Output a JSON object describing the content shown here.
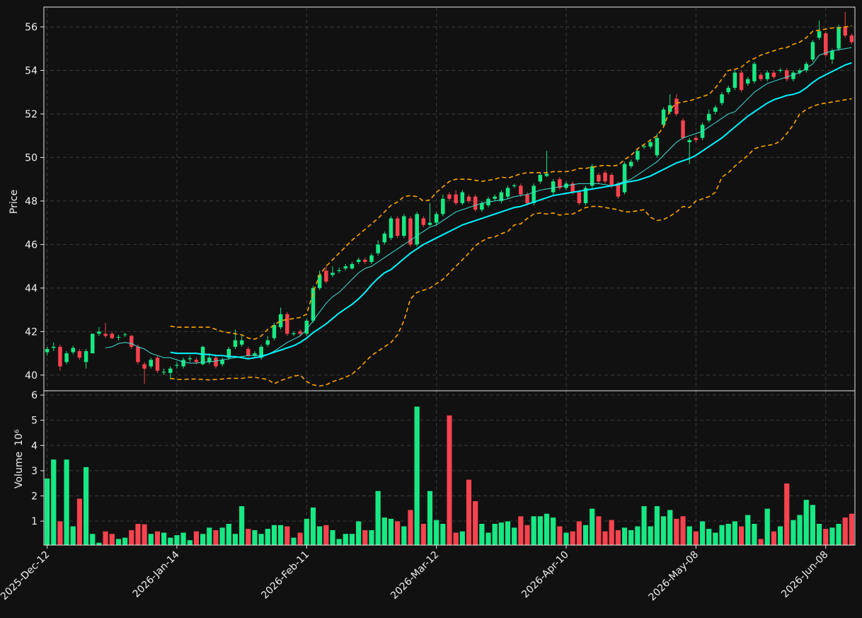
{
  "chart_data": {
    "type": "candlestick",
    "ylabel": "Price",
    "up_color": "#17e884",
    "down_color": "#f5434f",
    "grid": true,
    "ylim": [
      39.28,
      56.91
    ],
    "yticks": [
      40,
      42,
      44,
      46,
      48,
      50,
      52,
      54,
      56
    ],
    "categories": [
      "2025-Dec-12",
      null,
      null,
      null,
      null,
      null,
      null,
      null,
      null,
      null,
      null,
      null,
      null,
      null,
      null,
      null,
      null,
      null,
      null,
      null,
      "2026-Jan-14",
      null,
      null,
      null,
      null,
      null,
      null,
      null,
      null,
      null,
      null,
      null,
      null,
      null,
      null,
      null,
      null,
      null,
      null,
      null,
      "2026-Feb-11",
      null,
      null,
      null,
      null,
      null,
      null,
      null,
      null,
      null,
      null,
      null,
      null,
      null,
      null,
      null,
      null,
      null,
      null,
      null,
      "2026-Mar-12",
      null,
      null,
      null,
      null,
      null,
      null,
      null,
      null,
      null,
      null,
      null,
      null,
      null,
      null,
      null,
      null,
      null,
      null,
      null,
      "2026-Apr-10",
      null,
      null,
      null,
      null,
      null,
      null,
      null,
      null,
      null,
      null,
      null,
      null,
      null,
      null,
      null,
      null,
      null,
      null,
      null,
      "2026-May-08",
      null,
      null,
      null,
      null,
      null,
      null,
      null,
      null,
      null,
      null,
      null,
      null,
      null,
      null,
      null,
      null,
      null,
      null,
      null,
      "2026-Jun-08",
      null,
      null,
      null,
      null
    ],
    "open": [
      41.05,
      41.25,
      41.3,
      40.6,
      41.05,
      41.1,
      40.6,
      41.0,
      41.9,
      41.9,
      41.9,
      41.72,
      41.85,
      41.8,
      41.3,
      40.5,
      40.4,
      40.8,
      40.12,
      40.1,
      40.43,
      40.4,
      40.73,
      40.7,
      40.5,
      40.6,
      40.8,
      40.5,
      40.8,
      41.3,
      41.4,
      41.2,
      40.9,
      40.8,
      41.4,
      41.7,
      42.2,
      42.8,
      41.88,
      42.0,
      41.9,
      42.5,
      44.0,
      44.8,
      44.6,
      44.78,
      44.9,
      44.9,
      45.2,
      45.3,
      45.2,
      45.6,
      46.1,
      46.3,
      47.2,
      46.4,
      47.2,
      46.0,
      47.2,
      46.9,
      47.0,
      47.4,
      48.3,
      48.3,
      47.9,
      48.2,
      48.2,
      47.6,
      47.8,
      48.1,
      48.0,
      48.2,
      48.68,
      48.7,
      48.3,
      47.9,
      48.9,
      49.15,
      48.4,
      49.0,
      48.6,
      48.8,
      48.4,
      47.9,
      48.7,
      49.2,
      49.3,
      49.2,
      48.8,
      48.4,
      49.6,
      49.9,
      50.48,
      50.5,
      50.1,
      51.5,
      52.1,
      52.7,
      51.7,
      50.7,
      50.9,
      50.9,
      51.7,
      52.1,
      52.5,
      53.0,
      53.2,
      53.9,
      53.4,
      53.5,
      53.8,
      53.6,
      53.9,
      53.98,
      54.0,
      53.6,
      53.9,
      54.0,
      54.5,
      55.5,
      55.7,
      54.5,
      55.0,
      56.0,
      55.6
    ],
    "high": [
      41.3,
      41.5,
      41.4,
      41.1,
      41.35,
      41.2,
      41.2,
      41.9,
      42.2,
      42.4,
      42.0,
      41.85,
      41.95,
      41.85,
      41.4,
      40.6,
      40.8,
      40.9,
      40.3,
      40.4,
      40.6,
      40.8,
      40.9,
      40.8,
      41.35,
      41.0,
      40.9,
      40.8,
      41.3,
      42.1,
      41.8,
      41.3,
      41.1,
      41.4,
      41.8,
      42.4,
      43.1,
      42.9,
      42.0,
      42.1,
      42.6,
      44.1,
      44.8,
      45.0,
      45.0,
      44.95,
      45.1,
      45.2,
      45.4,
      45.4,
      45.6,
      46.2,
      46.6,
      47.3,
      47.3,
      47.4,
      47.3,
      47.5,
      47.3,
      47.9,
      47.5,
      48.3,
      48.4,
      48.5,
      48.5,
      48.3,
      48.3,
      48.0,
      48.2,
      48.3,
      48.5,
      48.7,
      48.8,
      48.8,
      48.4,
      48.8,
      49.3,
      50.3,
      49.0,
      49.1,
      48.9,
      48.9,
      48.5,
      48.7,
      49.7,
      49.3,
      49.4,
      49.3,
      48.9,
      49.8,
      49.9,
      50.4,
      50.6,
      50.8,
      51.1,
      52.3,
      52.9,
      52.9,
      51.8,
      50.9,
      51.0,
      51.6,
      52.2,
      52.4,
      53.0,
      53.3,
      54.0,
      54.0,
      53.7,
      54.4,
      53.9,
      54.0,
      54.0,
      54.1,
      54.1,
      54.0,
      54.1,
      54.4,
      55.4,
      56.3,
      55.8,
      55.0,
      56.1,
      56.7,
      55.7
    ],
    "low": [
      40.9,
      41.1,
      40.2,
      40.5,
      40.95,
      40.7,
      40.3,
      41.0,
      41.8,
      41.7,
      41.65,
      41.6,
      41.75,
      41.2,
      40.5,
      39.6,
      40.3,
      40.1,
      40.0,
      39.8,
      40.3,
      40.3,
      40.6,
      40.5,
      40.45,
      40.5,
      40.3,
      40.4,
      40.7,
      41.2,
      41.3,
      40.8,
      40.8,
      40.7,
      41.3,
      41.6,
      42.1,
      41.8,
      41.8,
      41.8,
      41.8,
      42.4,
      43.9,
      44.2,
      44.5,
      44.7,
      44.8,
      44.85,
      45.1,
      45.1,
      45.1,
      45.5,
      46.0,
      46.2,
      46.3,
      46.3,
      45.9,
      45.9,
      46.8,
      46.85,
      46.9,
      47.3,
      48.0,
      47.8,
      47.8,
      47.9,
      47.5,
      47.5,
      47.7,
      48.0,
      47.9,
      48.1,
      48.6,
      48.2,
      47.8,
      47.8,
      48.8,
      49.1,
      48.3,
      48.5,
      48.5,
      48.3,
      47.8,
      47.8,
      48.6,
      48.8,
      48.8,
      48.6,
      48.1,
      48.3,
      49.5,
      49.8,
      50.4,
      50.4,
      50.0,
      51.4,
      52.0,
      51.9,
      50.8,
      49.7,
      50.7,
      50.8,
      51.6,
      52.0,
      52.4,
      52.9,
      53.1,
      53.0,
      53.3,
      53.4,
      53.5,
      53.5,
      53.6,
      53.9,
      53.5,
      53.5,
      53.8,
      53.9,
      54.4,
      55.4,
      54.6,
      54.3,
      54.9,
      55.5,
      55.2
    ],
    "close": [
      41.2,
      41.3,
      40.4,
      41.0,
      41.25,
      40.8,
      41.1,
      41.9,
      42.0,
      41.8,
      41.7,
      41.75,
      41.87,
      41.3,
      40.6,
      40.3,
      40.7,
      40.2,
      40.15,
      40.3,
      40.47,
      40.7,
      40.77,
      40.6,
      41.3,
      40.8,
      40.4,
      40.7,
      41.2,
      41.6,
      41.6,
      40.9,
      41.0,
      41.3,
      41.6,
      42.3,
      42.8,
      41.9,
      41.92,
      41.9,
      42.5,
      44.0,
      44.6,
      44.3,
      44.7,
      44.82,
      45.0,
      45.1,
      45.3,
      45.2,
      45.5,
      46.0,
      46.5,
      47.2,
      46.4,
      47.3,
      46.0,
      47.4,
      46.9,
      47.0,
      47.4,
      48.1,
      48.1,
      47.9,
      48.4,
      48.0,
      47.6,
      47.9,
      48.1,
      48.2,
      48.4,
      48.6,
      48.72,
      48.3,
      47.9,
      48.7,
      49.2,
      49.25,
      48.9,
      48.6,
      48.8,
      48.4,
      47.9,
      48.6,
      49.6,
      48.9,
      48.9,
      48.7,
      48.2,
      49.7,
      49.8,
      50.3,
      50.52,
      50.7,
      50.9,
      52.2,
      52.4,
      52.0,
      50.9,
      50.8,
      50.8,
      51.5,
      52.0,
      52.3,
      52.9,
      53.2,
      53.9,
      53.1,
      53.6,
      54.3,
      53.6,
      53.9,
      53.7,
      54.02,
      53.6,
      53.9,
      54.0,
      54.3,
      55.3,
      55.8,
      54.7,
      54.9,
      56.0,
      55.6,
      55.3
    ],
    "lines": [
      {
        "color": "#ffa500",
        "width": 1.6,
        "dash": true,
        "values": [
          null,
          null,
          null,
          null,
          null,
          null,
          null,
          null,
          null,
          null,
          null,
          null,
          null,
          null,
          null,
          null,
          null,
          null,
          null,
          42.25,
          42.2,
          42.2,
          42.2,
          42.2,
          42.2,
          42.2,
          42.1,
          42.0,
          41.95,
          41.9,
          41.85,
          41.7,
          41.65,
          41.8,
          42.1,
          42.3,
          42.5,
          42.55,
          42.6,
          42.65,
          42.8,
          43.8,
          44.6,
          45.0,
          45.3,
          45.6,
          45.9,
          46.2,
          46.45,
          46.7,
          46.95,
          47.2,
          47.5,
          47.8,
          47.95,
          48.2,
          48.25,
          48.2,
          48.0,
          48.05,
          48.4,
          48.65,
          48.9,
          49.0,
          49.0,
          49.0,
          48.95,
          48.9,
          48.95,
          49.0,
          49.1,
          49.05,
          49.15,
          49.25,
          49.3,
          49.3,
          49.3,
          49.3,
          49.35,
          49.35,
          49.35,
          49.4,
          49.5,
          49.5,
          49.55,
          49.6,
          49.65,
          49.6,
          49.65,
          49.9,
          50.1,
          50.4,
          50.6,
          50.8,
          51.0,
          51.4,
          52.2,
          52.5,
          52.55,
          52.6,
          52.7,
          52.8,
          52.9,
          53.2,
          53.6,
          54.0,
          54.05,
          54.15,
          54.4,
          54.55,
          54.7,
          54.8,
          54.9,
          55.0,
          55.05,
          55.2,
          55.3,
          55.5,
          55.8,
          55.85,
          55.9,
          55.95,
          55.95,
          56.0,
          56.05
        ]
      },
      {
        "color": "#ffa500",
        "width": 1.6,
        "dash": true,
        "values": [
          null,
          null,
          null,
          null,
          null,
          null,
          null,
          null,
          null,
          null,
          null,
          null,
          null,
          null,
          null,
          null,
          null,
          null,
          null,
          39.85,
          39.8,
          39.8,
          39.82,
          39.82,
          39.8,
          39.78,
          39.8,
          39.82,
          39.85,
          39.85,
          39.85,
          39.9,
          39.9,
          39.85,
          39.8,
          39.6,
          39.75,
          39.85,
          39.95,
          40.0,
          39.7,
          39.55,
          39.5,
          39.55,
          39.7,
          39.8,
          39.9,
          40.05,
          40.3,
          40.6,
          40.9,
          41.1,
          41.3,
          41.5,
          41.85,
          42.5,
          43.5,
          43.8,
          43.9,
          44.0,
          44.2,
          44.4,
          44.7,
          45.0,
          45.3,
          45.6,
          45.95,
          46.15,
          46.3,
          46.35,
          46.5,
          46.6,
          46.9,
          46.95,
          47.2,
          47.4,
          47.45,
          47.4,
          47.45,
          47.35,
          47.4,
          47.4,
          47.55,
          47.7,
          47.75,
          47.75,
          47.7,
          47.65,
          47.6,
          47.5,
          47.5,
          47.55,
          47.6,
          47.25,
          47.1,
          47.15,
          47.3,
          47.5,
          47.75,
          47.7,
          48.0,
          48.1,
          48.2,
          48.4,
          49.1,
          49.3,
          49.6,
          49.85,
          50.1,
          50.4,
          50.5,
          50.55,
          50.6,
          50.75,
          51.1,
          51.5,
          52.0,
          52.2,
          52.35,
          52.45,
          52.5,
          52.55,
          52.6,
          52.65,
          52.7
        ]
      },
      {
        "color": "#40e0d0",
        "width": 1,
        "dash": false,
        "values": [
          null,
          null,
          null,
          null,
          null,
          null,
          null,
          null,
          null,
          41.25,
          41.3,
          41.45,
          41.5,
          41.45,
          41.3,
          41.2,
          41.0,
          40.9,
          40.8,
          40.8,
          40.7,
          40.6,
          40.55,
          40.55,
          40.6,
          40.6,
          40.65,
          40.7,
          40.75,
          40.8,
          40.85,
          40.9,
          40.9,
          40.9,
          40.95,
          41.1,
          41.3,
          41.5,
          41.65,
          41.8,
          42.1,
          42.5,
          42.9,
          43.3,
          43.6,
          43.8,
          44.1,
          44.4,
          44.7,
          44.9,
          45.0,
          45.2,
          45.4,
          45.6,
          45.8,
          46.0,
          46.2,
          46.4,
          46.6,
          46.8,
          46.9,
          47.1,
          47.3,
          47.5,
          47.6,
          47.7,
          47.8,
          47.9,
          47.95,
          48.0,
          48.05,
          48.1,
          48.2,
          48.25,
          48.3,
          48.4,
          48.5,
          48.55,
          48.6,
          48.65,
          48.7,
          48.75,
          48.8,
          48.8,
          48.8,
          48.8,
          48.75,
          48.7,
          48.8,
          48.9,
          49.0,
          49.2,
          49.4,
          49.6,
          49.8,
          50.1,
          50.4,
          50.7,
          50.9,
          51.0,
          51.1,
          51.2,
          51.4,
          51.6,
          51.8,
          52.0,
          52.1,
          52.4,
          52.7,
          53.0,
          53.2,
          53.4,
          53.5,
          53.6,
          53.7,
          53.8,
          53.9,
          54.1,
          54.3,
          54.7,
          54.8,
          54.9,
          54.95,
          55.0,
          55.05
        ]
      },
      {
        "color": "#00f5ff",
        "width": 2,
        "dash": false,
        "values": [
          null,
          null,
          null,
          null,
          null,
          null,
          null,
          null,
          null,
          null,
          null,
          null,
          null,
          null,
          null,
          null,
          null,
          null,
          null,
          41.05,
          41.0,
          41.0,
          41.0,
          41.0,
          40.95,
          40.95,
          40.9,
          40.9,
          40.85,
          40.85,
          40.8,
          40.75,
          40.8,
          40.85,
          40.95,
          41.05,
          41.15,
          41.25,
          41.35,
          41.5,
          41.7,
          41.95,
          42.15,
          42.35,
          42.6,
          42.85,
          43.05,
          43.25,
          43.5,
          43.8,
          44.15,
          44.45,
          44.7,
          44.85,
          45.1,
          45.35,
          45.6,
          45.8,
          46.0,
          46.15,
          46.3,
          46.45,
          46.6,
          46.75,
          46.9,
          47.0,
          47.1,
          47.2,
          47.3,
          47.4,
          47.5,
          47.6,
          47.7,
          47.75,
          47.85,
          47.95,
          48.05,
          48.15,
          48.25,
          48.3,
          48.35,
          48.4,
          48.45,
          48.5,
          48.55,
          48.6,
          48.65,
          48.7,
          48.75,
          48.85,
          48.9,
          48.95,
          49.05,
          49.15,
          49.3,
          49.45,
          49.6,
          49.75,
          49.85,
          49.95,
          50.1,
          50.3,
          50.5,
          50.7,
          50.9,
          51.15,
          51.4,
          51.65,
          51.9,
          52.1,
          52.3,
          52.5,
          52.65,
          52.75,
          52.85,
          52.9,
          53.0,
          53.2,
          53.45,
          53.65,
          53.8,
          53.95,
          54.1,
          54.25,
          54.35
        ]
      }
    ],
    "volume": {
      "label": "Volume",
      "scale_label": "10⁶",
      "ylim": [
        0.05,
        6.17
      ],
      "yticks": [
        1,
        2,
        3,
        4,
        5,
        6
      ],
      "values": [
        2.7,
        3.45,
        1.0,
        3.45,
        0.8,
        1.9,
        3.15,
        0.5,
        0.15,
        0.6,
        0.5,
        0.3,
        0.35,
        0.65,
        0.9,
        0.88,
        0.5,
        0.6,
        0.55,
        0.35,
        0.45,
        0.55,
        0.25,
        0.6,
        0.5,
        0.75,
        0.65,
        0.75,
        0.9,
        0.5,
        1.6,
        0.7,
        0.65,
        0.5,
        0.7,
        0.85,
        0.85,
        0.8,
        0.35,
        0.55,
        1.1,
        1.55,
        0.8,
        0.85,
        0.65,
        0.3,
        0.5,
        0.5,
        1.0,
        0.65,
        0.65,
        2.2,
        1.15,
        1.1,
        1.0,
        0.8,
        1.45,
        5.55,
        0.9,
        2.2,
        1.05,
        0.9,
        5.2,
        0.55,
        0.6,
        2.65,
        1.8,
        0.9,
        0.55,
        0.9,
        0.95,
        1.0,
        0.75,
        1.2,
        0.85,
        1.2,
        1.2,
        1.3,
        1.15,
        0.8,
        0.55,
        0.6,
        1.0,
        0.85,
        1.5,
        1.2,
        0.6,
        1.05,
        0.65,
        0.75,
        0.65,
        0.8,
        1.6,
        0.8,
        1.6,
        1.2,
        1.45,
        1.1,
        1.2,
        0.8,
        0.6,
        1.0,
        0.7,
        0.55,
        0.85,
        0.9,
        1.0,
        0.8,
        1.25,
        0.9,
        0.3,
        1.5,
        0.6,
        0.8,
        2.5,
        1.05,
        1.25,
        1.85,
        1.65,
        0.9,
        0.7,
        0.75,
        0.9,
        1.15,
        1.3
      ]
    }
  }
}
